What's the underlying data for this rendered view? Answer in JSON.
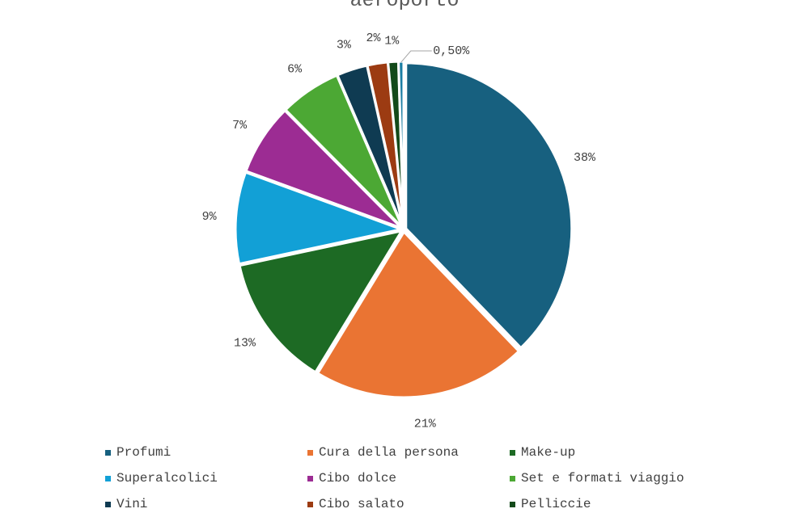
{
  "chart_data": {
    "type": "pie",
    "title": "aeroporto",
    "series": [
      {
        "name": "Profumi",
        "value": 38,
        "label": "38%",
        "color": "#17607f"
      },
      {
        "name": "Cura della persona",
        "value": 21,
        "label": "21%",
        "color": "#ea7433"
      },
      {
        "name": "Make-up",
        "value": 13,
        "label": "13%",
        "color": "#1d6a24"
      },
      {
        "name": "Superalcolici",
        "value": 9,
        "label": "9%",
        "color": "#12a0d6"
      },
      {
        "name": "Cibo dolce",
        "value": 7,
        "label": "7%",
        "color": "#9c2c93"
      },
      {
        "name": "Set e formati viaggio",
        "value": 6,
        "label": "6%",
        "color": "#4ca834"
      },
      {
        "name": "Vini",
        "value": 3,
        "label": "3%",
        "color": "#0f3b52"
      },
      {
        "name": "Cibo salato",
        "value": 2,
        "label": "2%",
        "color": "#9c3b12"
      },
      {
        "name": "Pelliccie",
        "value": 1,
        "label": "1%",
        "color": "#134a1a"
      },
      {
        "name": "",
        "value": 0.5,
        "label": "0,50%",
        "color": "#1b7ea3"
      }
    ],
    "legend_position": "bottom"
  }
}
